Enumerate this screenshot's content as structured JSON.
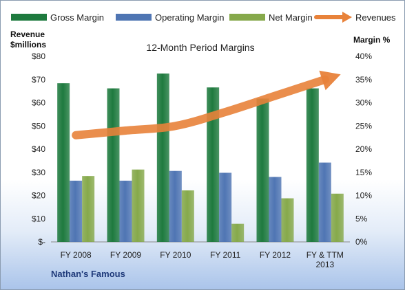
{
  "chart_data": {
    "type": "bar",
    "title": "12-Month Period Margins",
    "categories": [
      [
        "FY 2008"
      ],
      [
        "FY 2009"
      ],
      [
        "FY 2010"
      ],
      [
        "FY 2011"
      ],
      [
        "FY 2012"
      ],
      [
        "FY & TTM",
        "2013"
      ]
    ],
    "series": [
      {
        "name": "Gross Margin",
        "type": "bar",
        "axis": "right",
        "color": "#1e7a3e",
        "values": [
          34.2,
          33.1,
          36.3,
          33.3,
          30.9,
          33.1
        ]
      },
      {
        "name": "Operating Margin",
        "type": "bar",
        "axis": "right",
        "color": "#4f75b3",
        "values": [
          13.2,
          13.2,
          15.3,
          14.9,
          14.0,
          17.1
        ]
      },
      {
        "name": "Net Margin",
        "type": "bar",
        "axis": "right",
        "color": "#86a94b",
        "values": [
          14.2,
          15.6,
          11.1,
          3.9,
          9.4,
          10.4
        ]
      },
      {
        "name": "Revenues",
        "type": "line",
        "axis": "left",
        "color": "#e8823a",
        "values": [
          46,
          48,
          50,
          56,
          63,
          70
        ]
      }
    ],
    "y_left": {
      "label": [
        "Revenue",
        "$millions"
      ],
      "ylim": [
        0,
        80
      ],
      "ticks": [
        "$-",
        "$10",
        "$20",
        "$30",
        "$40",
        "$50",
        "$60",
        "$70",
        "$80"
      ]
    },
    "y_right": {
      "label": "Margin %",
      "ylim": [
        0,
        40
      ],
      "ticks": [
        "0%",
        "5%",
        "10%",
        "15%",
        "20%",
        "25%",
        "30%",
        "35%",
        "40%"
      ]
    },
    "grid": false,
    "legend_position": "top",
    "footer": "Nathan's Famous"
  }
}
